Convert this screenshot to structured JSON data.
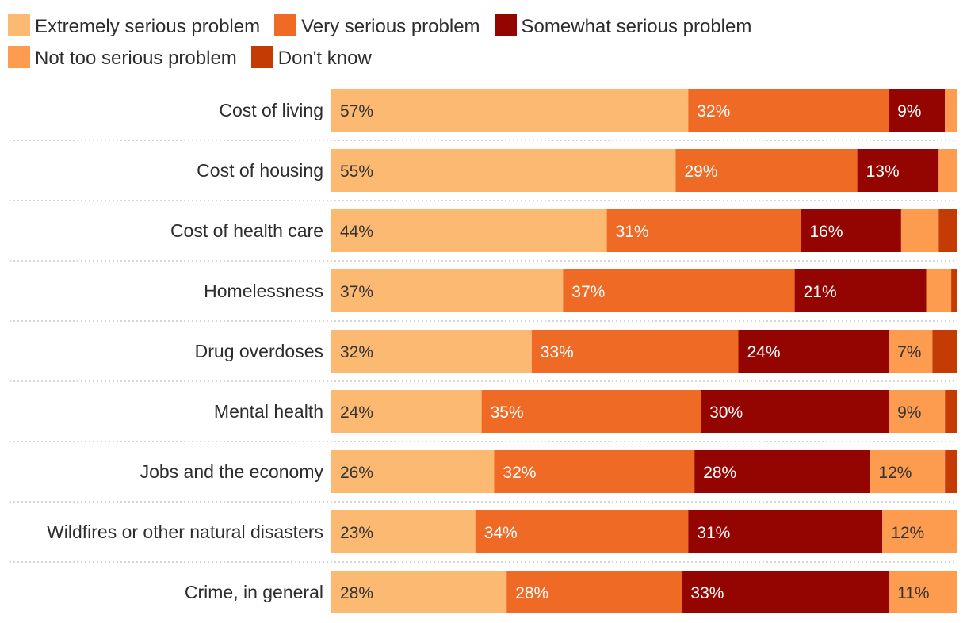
{
  "chart_data": {
    "type": "bar",
    "orientation": "horizontal",
    "stacked": true,
    "title": "",
    "xlabel": "",
    "ylabel": "",
    "xlim": [
      0,
      100
    ],
    "legend_position": "top",
    "categories": [
      "Cost of living",
      "Cost of housing",
      "Cost of health care",
      "Homelessness",
      "Drug overdoses",
      "Mental health",
      "Jobs and the economy",
      "Wildfires or other natural disasters",
      "Crime, in general"
    ],
    "series": [
      {
        "name": "Extremely serious problem",
        "color": "#fbb971",
        "label_color": "#333333",
        "values": [
          57,
          55,
          44,
          37,
          32,
          24,
          26,
          23,
          28
        ],
        "labels": [
          "57%",
          "55%",
          "44%",
          "37%",
          "32%",
          "24%",
          "26%",
          "23%",
          "28%"
        ]
      },
      {
        "name": "Very serious problem",
        "color": "#ef6a25",
        "label_color": "#ffffff",
        "values": [
          32,
          29,
          31,
          37,
          33,
          35,
          32,
          34,
          28
        ],
        "labels": [
          "32%",
          "29%",
          "31%",
          "37%",
          "33%",
          "35%",
          "32%",
          "34%",
          "28%"
        ]
      },
      {
        "name": "Somewhat serious problem",
        "color": "#940501",
        "label_color": "#ffffff",
        "values": [
          9,
          13,
          16,
          21,
          24,
          30,
          28,
          31,
          33
        ],
        "labels": [
          "9%",
          "13%",
          "16%",
          "21%",
          "24%",
          "30%",
          "28%",
          "31%",
          "33%"
        ]
      },
      {
        "name": "Not too serious problem",
        "color": "#fd9b4e",
        "label_color": "#333333",
        "values": [
          2,
          3,
          6,
          4,
          7,
          9,
          12,
          12,
          11
        ],
        "labels": [
          "",
          "",
          "",
          "",
          "7%",
          "9%",
          "12%",
          "12%",
          "11%"
        ]
      },
      {
        "name": "Don't know",
        "color": "#c43c04",
        "label_color": "#ffffff",
        "values": [
          0,
          0,
          3,
          1,
          4,
          2,
          2,
          0,
          0
        ],
        "labels": [
          "",
          "",
          "",
          "",
          "",
          "",
          "",
          "",
          ""
        ]
      }
    ]
  }
}
